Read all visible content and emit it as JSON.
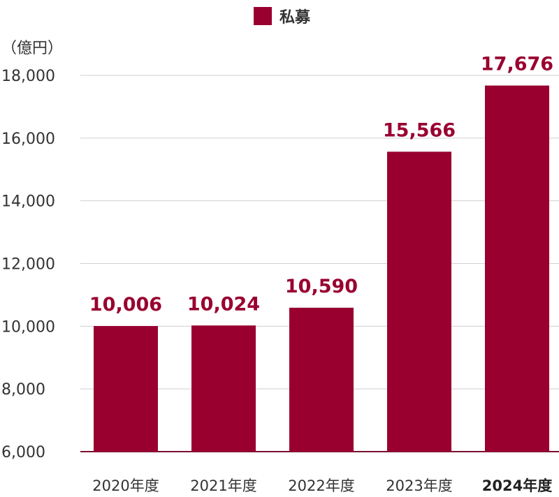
{
  "colors": {
    "bar": "#990030",
    "grid": "#cfcfd6",
    "axis": "#7a1030"
  },
  "legend": {
    "label": "私募"
  },
  "chart_data": {
    "type": "bar",
    "title": "",
    "ylabel": "（億円）",
    "xlabel": "",
    "ylim": [
      6000,
      18000
    ],
    "yticks": [
      "18,000",
      "16,000",
      "14,000",
      "12,000",
      "10,000",
      "8,000",
      "6,000"
    ],
    "ytick_values": [
      18000,
      16000,
      14000,
      12000,
      10000,
      8000,
      6000
    ],
    "categories": [
      "2020年度",
      "2021年度",
      "2022年度",
      "2023年度",
      "2024年度"
    ],
    "emphasized_category": "2024年度",
    "series": [
      {
        "name": "私募",
        "values": [
          10006,
          10024,
          10590,
          15566,
          17676
        ],
        "labels": [
          "10,006",
          "10,024",
          "10,590",
          "15,566",
          "17,676"
        ]
      }
    ],
    "grid": true,
    "legend_position": "top-center"
  }
}
